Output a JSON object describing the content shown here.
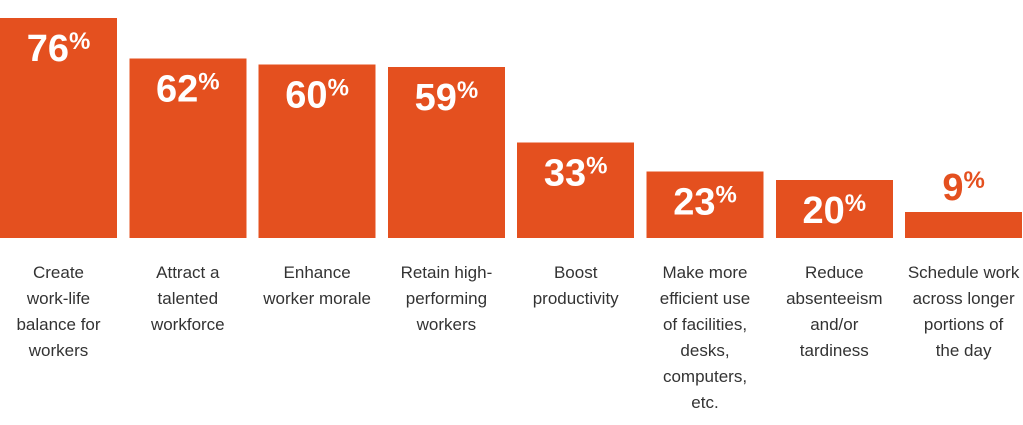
{
  "colors": {
    "bar": "#e4501f",
    "value_inside": "#ffffff",
    "value_outside": "#e4501f",
    "label": "#333333"
  },
  "chart_data": {
    "type": "bar",
    "title": "",
    "xlabel": "",
    "ylabel": "",
    "ylim": [
      0,
      76
    ],
    "grid": false,
    "value_suffix": "%",
    "categories": [
      [
        "Create",
        "work-life",
        "balance for",
        "workers"
      ],
      [
        "Attract a",
        "talented",
        "workforce"
      ],
      [
        "Enhance",
        "worker morale"
      ],
      [
        "Retain high-",
        "performing",
        "workers"
      ],
      [
        "Boost",
        "productivity"
      ],
      [
        "Make more",
        "efficient use",
        "of facilities,",
        "desks,",
        "computers,",
        "etc."
      ],
      [
        "Reduce",
        "absenteeism",
        "and/or",
        "tardiness"
      ],
      [
        "Schedule work",
        "across longer",
        "portions of",
        "the day"
      ]
    ],
    "values": [
      76,
      62,
      60,
      59,
      33,
      23,
      20,
      9
    ]
  }
}
